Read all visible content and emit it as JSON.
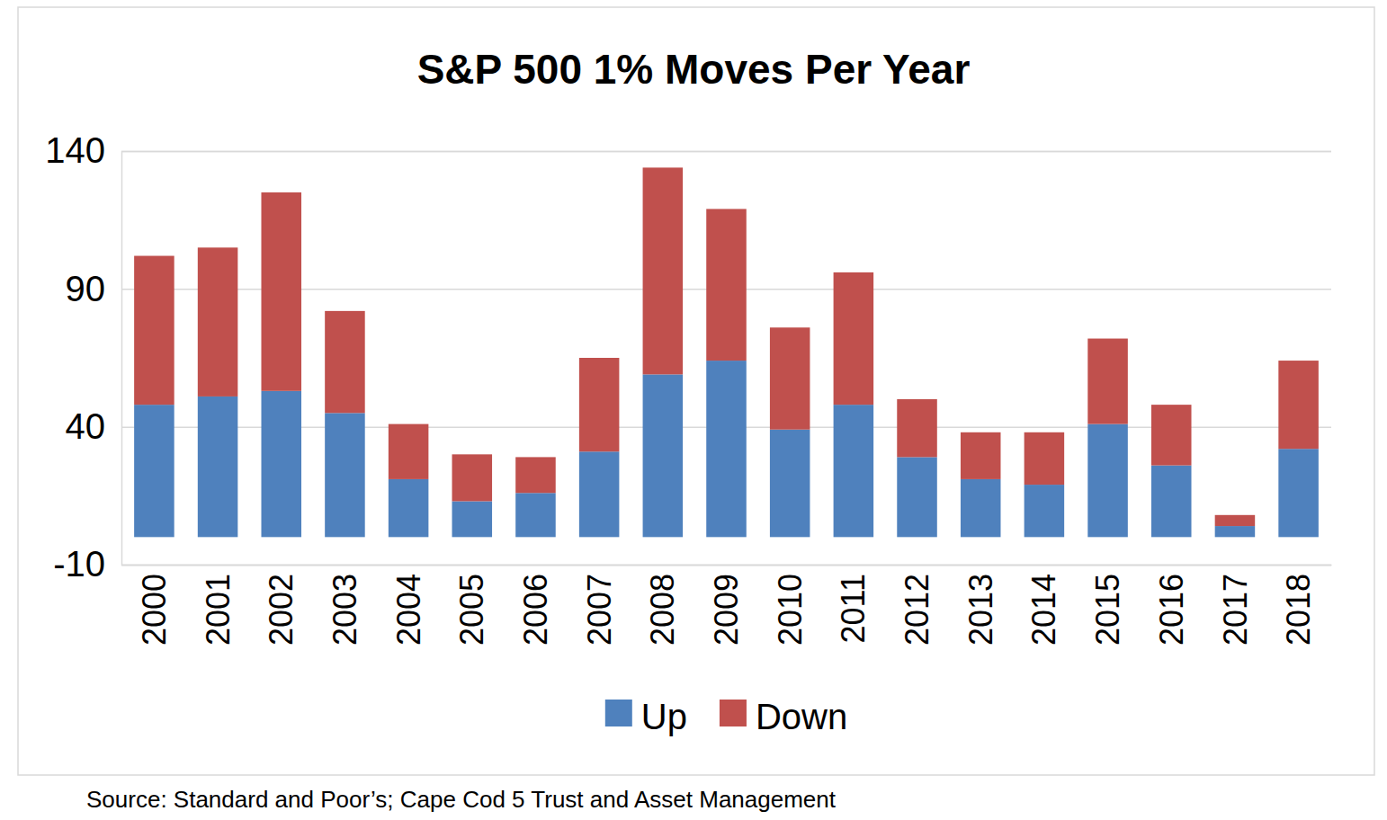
{
  "chart_data": {
    "type": "bar",
    "title": "S&P 500 1% Moves Per Year",
    "source": "Source: Standard and Poor’s; Cape Cod 5 Trust and Asset Management",
    "categories": [
      "2000",
      "2001",
      "2002",
      "2003",
      "2004",
      "2005",
      "2006",
      "2007",
      "2008",
      "2009",
      "2010",
      "2011",
      "2012",
      "2013",
      "2014",
      "2015",
      "2016",
      "2017",
      "2018"
    ],
    "series": [
      {
        "name": "Up",
        "color": "#4f81bd",
        "values": [
          48,
          51,
          53,
          45,
          21,
          13,
          16,
          31,
          59,
          64,
          39,
          48,
          29,
          21,
          19,
          41,
          26,
          4,
          32
        ]
      },
      {
        "name": "Down",
        "color": "#c0504d",
        "values": [
          54,
          54,
          72,
          37,
          20,
          17,
          13,
          34,
          75,
          55,
          37,
          48,
          21,
          17,
          19,
          31,
          22,
          4,
          32
        ]
      }
    ],
    "ylim": [
      -10,
      140
    ],
    "yticks": [
      -10,
      40,
      90,
      140
    ],
    "grid": true,
    "stacked": true,
    "legend": "bottom"
  }
}
